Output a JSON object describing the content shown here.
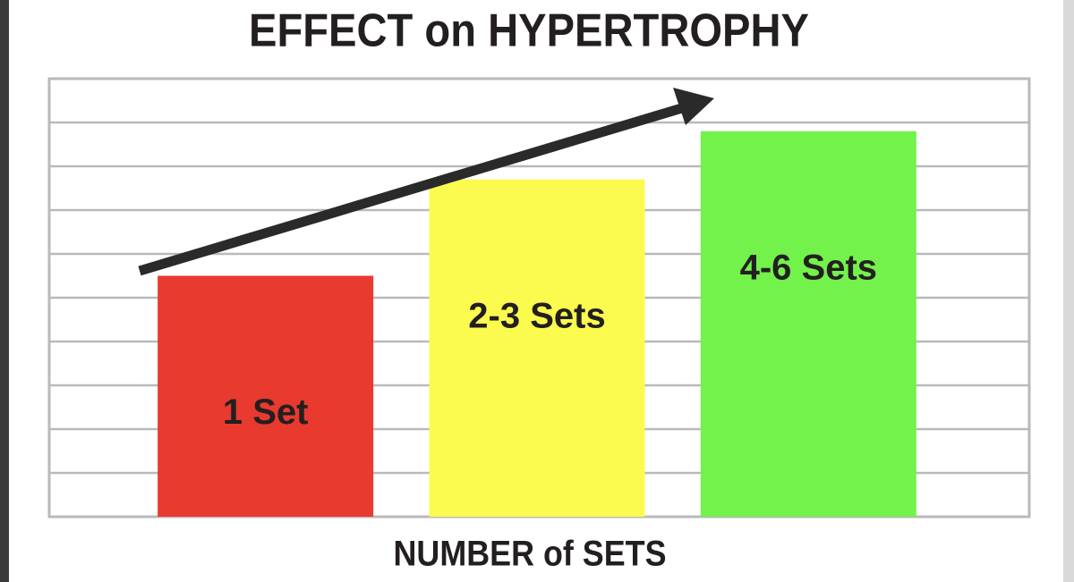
{
  "chart_data": {
    "type": "bar",
    "title": "EFFECT on HYPERTROPHY",
    "x_label": "NUMBER of SETS",
    "categories": [
      "1 Set",
      "2-3 Sets",
      "4-6 Sets"
    ],
    "values": [
      5.5,
      7.7,
      8.8
    ],
    "colors": [
      "#e83a2f",
      "#fbfb4f",
      "#73f24b"
    ],
    "ylim": [
      0,
      10
    ],
    "yticks": [
      0,
      1,
      2,
      3,
      4,
      5,
      6,
      7,
      8,
      9,
      10
    ],
    "grid": true
  }
}
